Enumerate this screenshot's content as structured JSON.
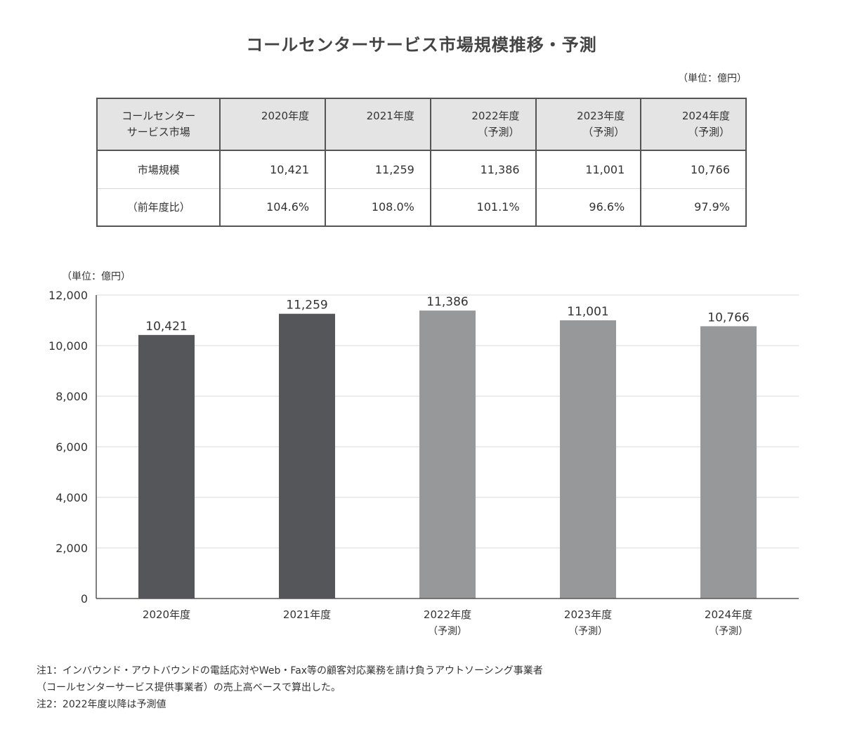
{
  "title": "コールセンターサービス市場規模推移・予測",
  "unit_table": "（単位：億円）",
  "table": {
    "corner_line1": "コールセンター",
    "corner_line2": "サービス市場",
    "columns": [
      {
        "line1": "2020年度",
        "line2": ""
      },
      {
        "line1": "2021年度",
        "line2": ""
      },
      {
        "line1": "2022年度",
        "line2": "（予測）"
      },
      {
        "line1": "2023年度",
        "line2": "（予測）"
      },
      {
        "line1": "2024年度",
        "line2": "（予測）"
      }
    ],
    "rows": [
      {
        "label": "市場規模",
        "values": [
          "10,421",
          "11,259",
          "11,386",
          "11,001",
          "10,766"
        ]
      },
      {
        "label": "（前年度比）",
        "values": [
          "104.6%",
          "108.0%",
          "101.1%",
          "96.6%",
          "97.9%"
        ]
      }
    ]
  },
  "chart_data": {
    "type": "bar",
    "unit_label": "（単位：億円）",
    "categories": [
      {
        "line1": "2020年度",
        "line2": ""
      },
      {
        "line1": "2021年度",
        "line2": ""
      },
      {
        "line1": "2022年度",
        "line2": "（予測）"
      },
      {
        "line1": "2023年度",
        "line2": "（予測）"
      },
      {
        "line1": "2024年度",
        "line2": "（予測）"
      }
    ],
    "values": [
      10421,
      11259,
      11386,
      11001,
      10766
    ],
    "value_labels": [
      "10,421",
      "11,259",
      "11,386",
      "11,001",
      "10,766"
    ],
    "is_forecast": [
      false,
      false,
      true,
      true,
      true
    ],
    "ylim": [
      0,
      12000
    ],
    "yticks": [
      0,
      2000,
      4000,
      6000,
      8000,
      10000,
      12000
    ],
    "ytick_labels": [
      "0",
      "2,000",
      "4,000",
      "6,000",
      "8,000",
      "10,000",
      "12,000"
    ],
    "grid": true,
    "colors": {
      "actual": "#55565a",
      "forecast": "#96989a",
      "grid": "#d9d9d9",
      "axis": "#555555"
    }
  },
  "notes": [
    "注1：インバウンド・アウトバウンドの電話応対やWeb・Fax等の顧客対応業務を請け負うアウトソーシング事業者",
    "（コールセンターサービス提供事業者）の売上高ベースで算出した。",
    "注2：2022年度以降は予測値"
  ]
}
